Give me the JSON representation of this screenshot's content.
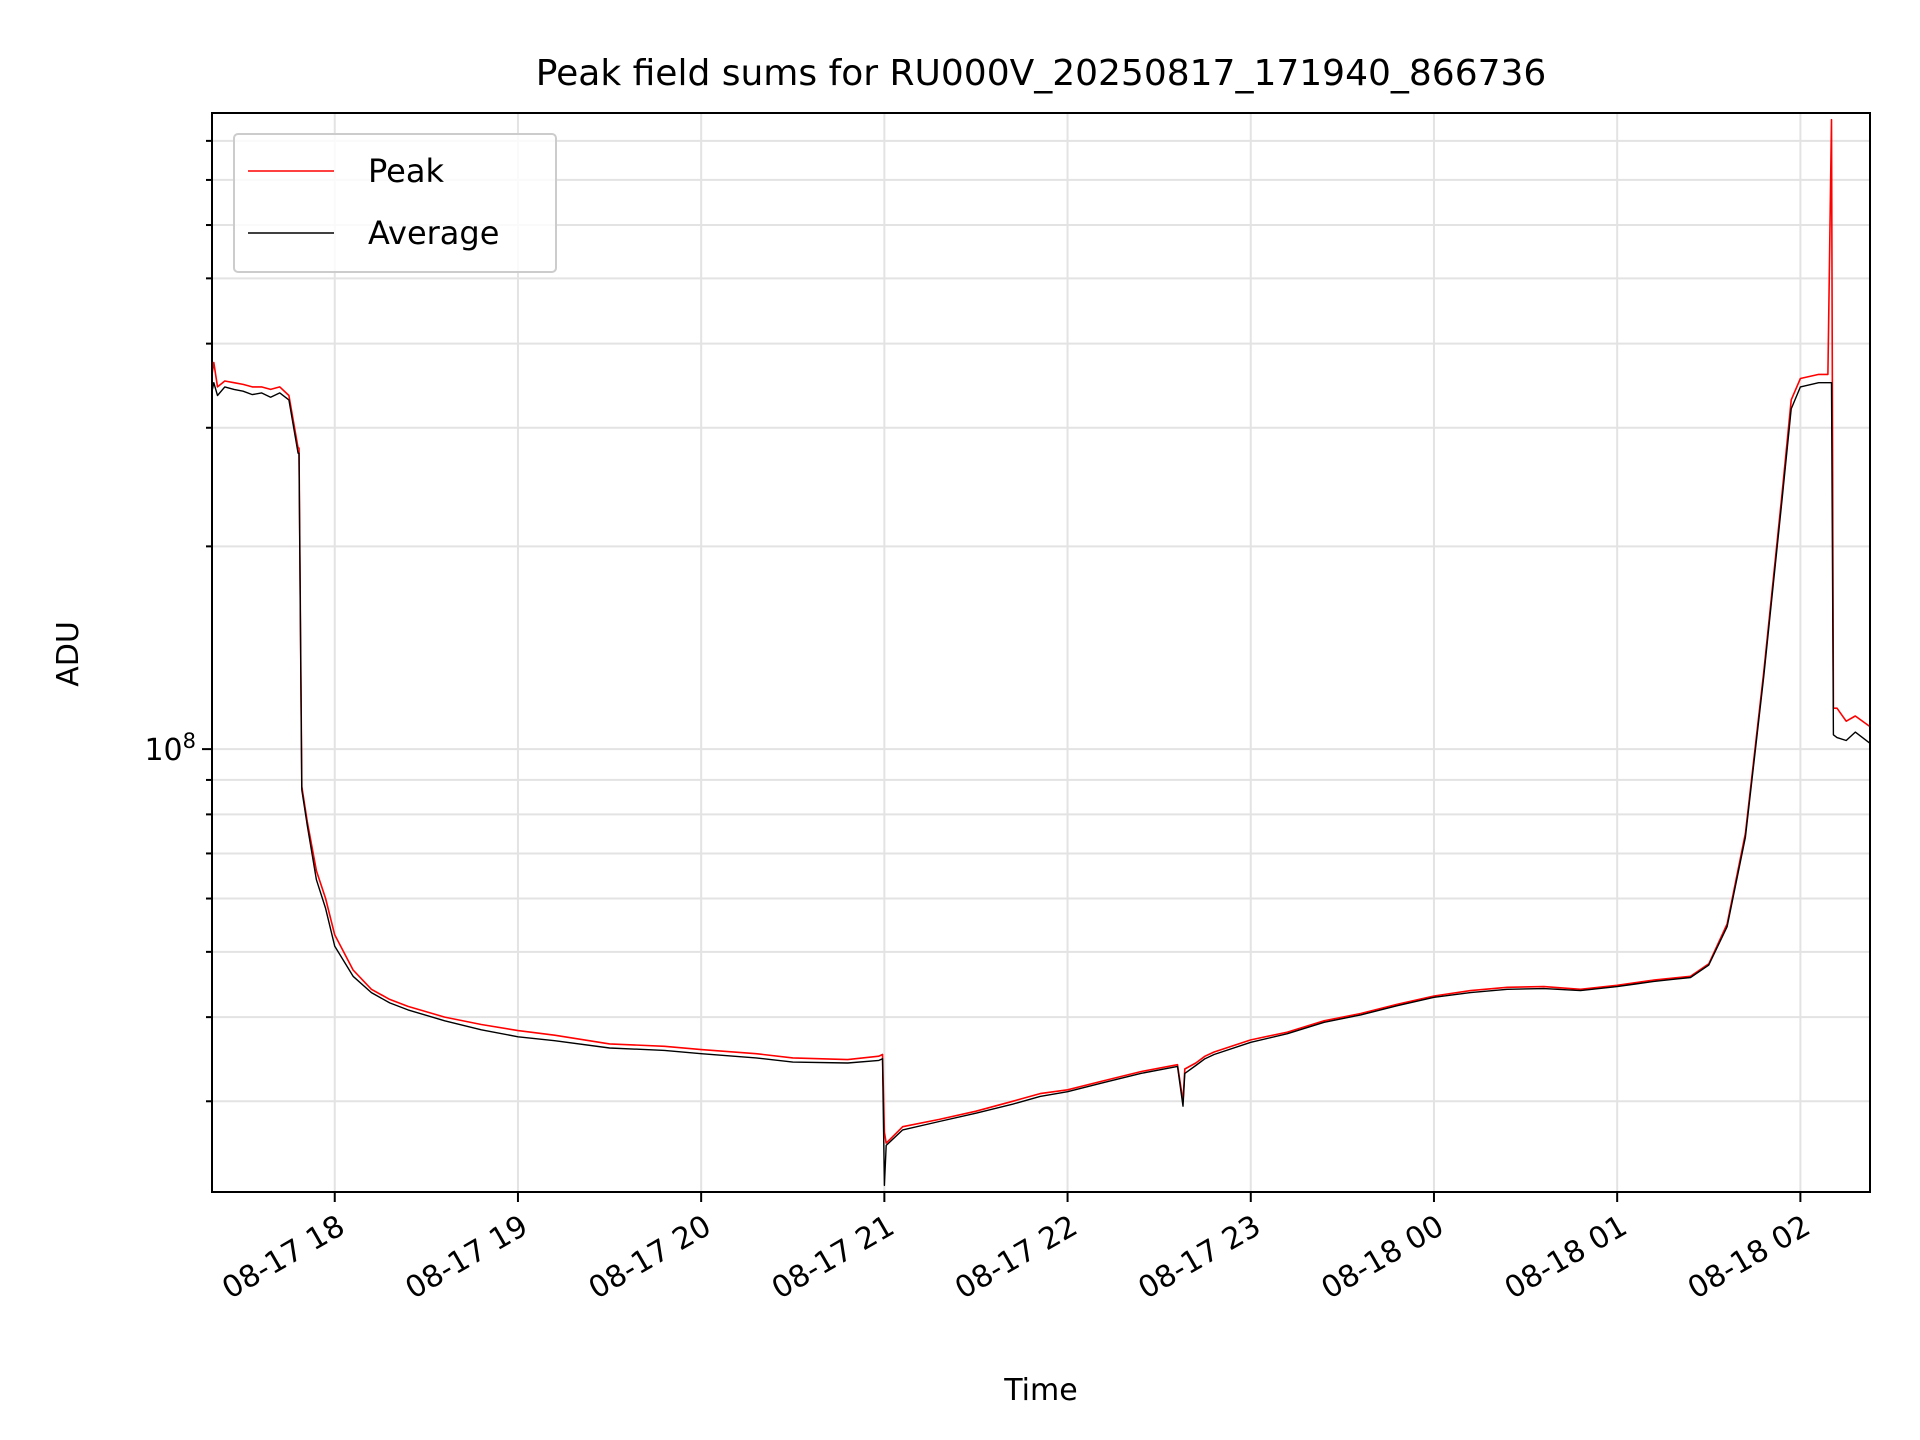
{
  "chart_data": {
    "type": "line",
    "title": "Peak field sums for RU000V_20250817_171940_866736",
    "xlabel": "Time",
    "ylabel": "ADU",
    "yscale": "log",
    "grid": true,
    "legend_position": "top-left",
    "x_tick_labels": [
      "08-17 18",
      "08-17 19",
      "08-17 20",
      "08-17 21",
      "08-17 22",
      "08-17 23",
      "08-18 00",
      "08-18 01",
      "08-18 02"
    ],
    "x_tick_hours": [
      18,
      19,
      20,
      21,
      22,
      23,
      24,
      25,
      26
    ],
    "x_range_hours": [
      17.33,
      26.38
    ],
    "y_tick_label": {
      "base": "10",
      "exp": "8"
    },
    "y_tick_value": 100000000,
    "ylim": [
      22000000,
      880000000
    ],
    "series": [
      {
        "name": "Peak",
        "color": "#ff0000",
        "x": [
          17.33,
          17.34,
          17.36,
          17.4,
          17.45,
          17.5,
          17.55,
          17.6,
          17.65,
          17.7,
          17.75,
          17.8,
          17.805,
          17.82,
          17.85,
          17.9,
          17.95,
          18.0,
          18.1,
          18.2,
          18.3,
          18.4,
          18.6,
          18.8,
          19.0,
          19.2,
          19.5,
          19.8,
          20.0,
          20.3,
          20.5,
          20.8,
          20.97,
          20.99,
          21.0,
          21.01,
          21.1,
          21.3,
          21.5,
          21.7,
          21.85,
          22.0,
          22.2,
          22.4,
          22.6,
          22.63,
          22.64,
          22.7,
          22.75,
          22.8,
          23.0,
          23.2,
          23.4,
          23.6,
          23.8,
          24.0,
          24.2,
          24.4,
          24.6,
          24.8,
          25.0,
          25.1,
          25.2,
          25.3,
          25.4,
          25.5,
          25.6,
          25.7,
          25.8,
          25.9,
          25.95,
          26.0,
          26.1,
          26.15,
          26.17,
          26.18,
          26.2,
          26.25,
          26.3,
          26.38
        ],
        "y": [
          360000000,
          375000000,
          345000000,
          352000000,
          350000000,
          348000000,
          345000000,
          345000000,
          342000000,
          345000000,
          335000000,
          280000000,
          280000000,
          88000000,
          78000000,
          66000000,
          60000000,
          53000000,
          47000000,
          44000000,
          42500000,
          41500000,
          40000000,
          39000000,
          38200000,
          37600000,
          36500000,
          36200000,
          35800000,
          35300000,
          34800000,
          34600000,
          35000000,
          35200000,
          27000000,
          26000000,
          27500000,
          28200000,
          29000000,
          30000000,
          30800000,
          31200000,
          32200000,
          33200000,
          34000000,
          30000000,
          33500000,
          34200000,
          35000000,
          35500000,
          37000000,
          38000000,
          39500000,
          40500000,
          41800000,
          43000000,
          43800000,
          44300000,
          44400000,
          44000000,
          44600000,
          45000000,
          45400000,
          45700000,
          46000000,
          48000000,
          55000000,
          75000000,
          130000000,
          240000000,
          330000000,
          355000000,
          360000000,
          360000000,
          860000000,
          115000000,
          115000000,
          110000000,
          112000000,
          108000000
        ]
      },
      {
        "name": "Average",
        "color": "#000000",
        "x": [
          17.33,
          17.34,
          17.36,
          17.4,
          17.45,
          17.5,
          17.55,
          17.6,
          17.65,
          17.7,
          17.75,
          17.8,
          17.805,
          17.82,
          17.85,
          17.9,
          17.95,
          18.0,
          18.1,
          18.2,
          18.3,
          18.4,
          18.6,
          18.8,
          19.0,
          19.2,
          19.5,
          19.8,
          20.0,
          20.3,
          20.5,
          20.8,
          20.97,
          20.99,
          21.0,
          21.01,
          21.1,
          21.3,
          21.5,
          21.7,
          21.85,
          22.0,
          22.2,
          22.4,
          22.6,
          22.63,
          22.64,
          22.7,
          22.75,
          22.8,
          23.0,
          23.2,
          23.4,
          23.6,
          23.8,
          24.0,
          24.2,
          24.4,
          24.6,
          24.8,
          25.0,
          25.1,
          25.2,
          25.3,
          25.4,
          25.5,
          25.6,
          25.7,
          25.8,
          25.9,
          25.95,
          26.0,
          26.1,
          26.15,
          26.17,
          26.18,
          26.2,
          26.25,
          26.3,
          26.38
        ],
        "y": [
          340000000,
          350000000,
          335000000,
          345000000,
          342000000,
          340000000,
          336000000,
          338000000,
          333000000,
          338000000,
          330000000,
          275000000,
          275000000,
          87000000,
          77000000,
          64000000,
          58000000,
          51000000,
          46000000,
          43500000,
          42000000,
          41000000,
          39500000,
          38300000,
          37400000,
          36900000,
          36000000,
          35700000,
          35300000,
          34800000,
          34300000,
          34200000,
          34500000,
          34700000,
          22500000,
          25800000,
          27200000,
          28000000,
          28800000,
          29700000,
          30500000,
          31000000,
          32000000,
          33000000,
          33800000,
          29500000,
          33000000,
          33900000,
          34700000,
          35200000,
          36700000,
          37800000,
          39300000,
          40300000,
          41600000,
          42800000,
          43500000,
          44000000,
          44100000,
          43800000,
          44400000,
          44800000,
          45200000,
          45500000,
          45800000,
          47800000,
          54500000,
          74000000,
          128000000,
          235000000,
          320000000,
          345000000,
          350000000,
          350000000,
          350000000,
          105000000,
          104000000,
          103000000,
          106000000,
          102000000
        ]
      }
    ]
  }
}
